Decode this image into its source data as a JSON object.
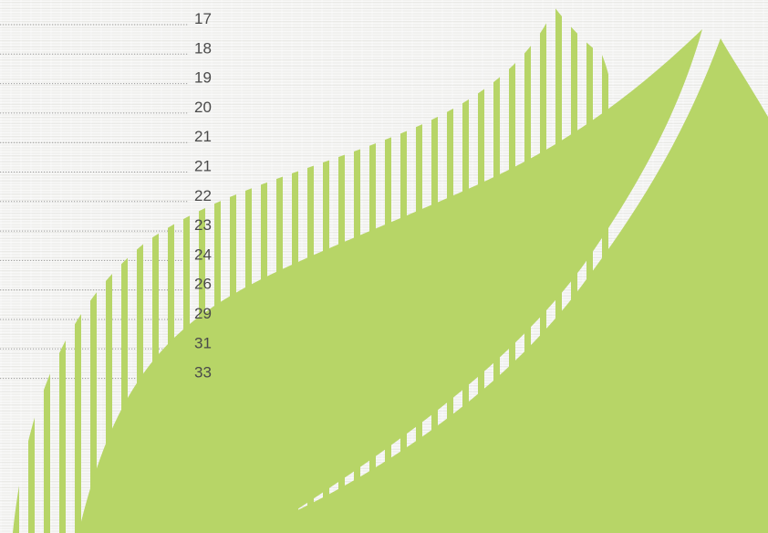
{
  "colors": {
    "leaf": "#b7d567",
    "text": "#4a4a4a",
    "dots": "#9a9a9a"
  },
  "labels": [
    "17",
    "18",
    "19",
    "20",
    "21",
    "21",
    "22",
    "23",
    "24",
    "26",
    "29",
    "31",
    "33"
  ]
}
